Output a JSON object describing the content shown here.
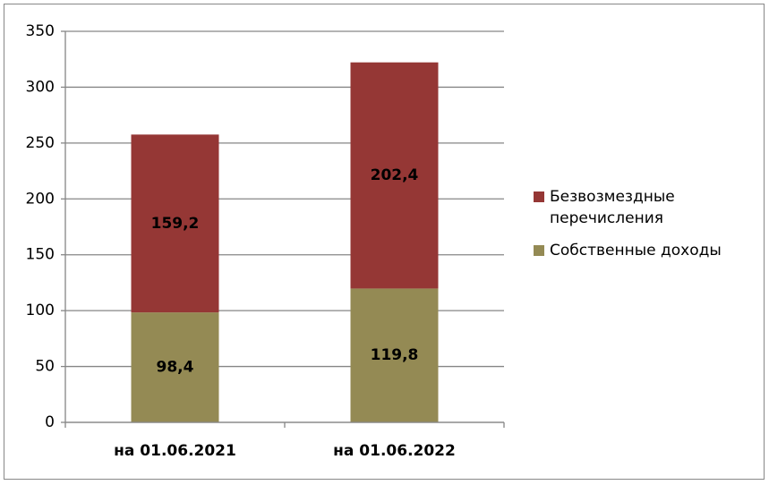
{
  "chart_data": {
    "type": "stacked-bar",
    "categories": [
      "на 01.06.2021",
      "на 01.06.2022"
    ],
    "series": [
      {
        "name": "Собственные доходы",
        "color": "#948a54",
        "values": [
          98.4,
          119.8
        ],
        "value_labels": [
          "98,4",
          "119,8"
        ]
      },
      {
        "name": "Безвозмездные перечисления",
        "color": "#953735",
        "values": [
          159.2,
          202.4
        ],
        "value_labels": [
          "159,2",
          "202,4"
        ]
      }
    ],
    "ylim": [
      0,
      350
    ],
    "yticks": [
      0,
      50,
      100,
      150,
      200,
      250,
      300,
      350
    ],
    "grid": true,
    "legend": "right"
  }
}
